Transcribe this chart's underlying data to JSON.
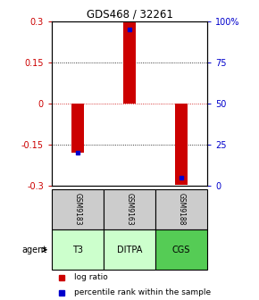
{
  "title": "GDS468 / 32261",
  "samples": [
    "GSM9183",
    "GSM9163",
    "GSM9188"
  ],
  "agents": [
    "T3",
    "DITPA",
    "CGS"
  ],
  "log_ratios": [
    -0.18,
    0.3,
    -0.295
  ],
  "percentile_ranks": [
    0.2,
    0.95,
    0.05
  ],
  "ylim": [
    -0.3,
    0.3
  ],
  "yticks_left": [
    -0.3,
    -0.15,
    0,
    0.15,
    0.3
  ],
  "yticks_right": [
    0,
    25,
    50,
    75,
    100
  ],
  "bar_color": "#cc0000",
  "pct_color": "#0000cc",
  "agent_colors": [
    "#ccffcc",
    "#ccffcc",
    "#55cc55"
  ],
  "sample_bg": "#cccccc",
  "zero_color": "#cc0000",
  "legend_bar_label": "log ratio",
  "legend_pct_label": "percentile rank within the sample",
  "bar_width": 0.25
}
